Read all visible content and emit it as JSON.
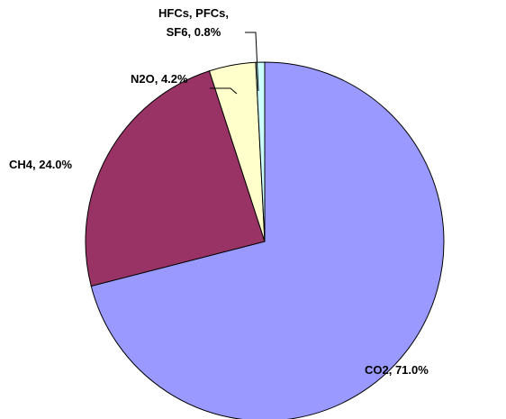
{
  "chart_data": {
    "type": "pie",
    "values": [
      71.0,
      24.0,
      4.2,
      0.8
    ],
    "value_labels": [
      "CO2, 71.0%",
      "CH4, 24.0%",
      "N2O, 4.2%",
      "HFCs, PFCs, SF6, 0.8%"
    ],
    "colors": [
      "#9999ff",
      "#993366",
      "#ffffcc",
      "#ccffff"
    ]
  }
}
